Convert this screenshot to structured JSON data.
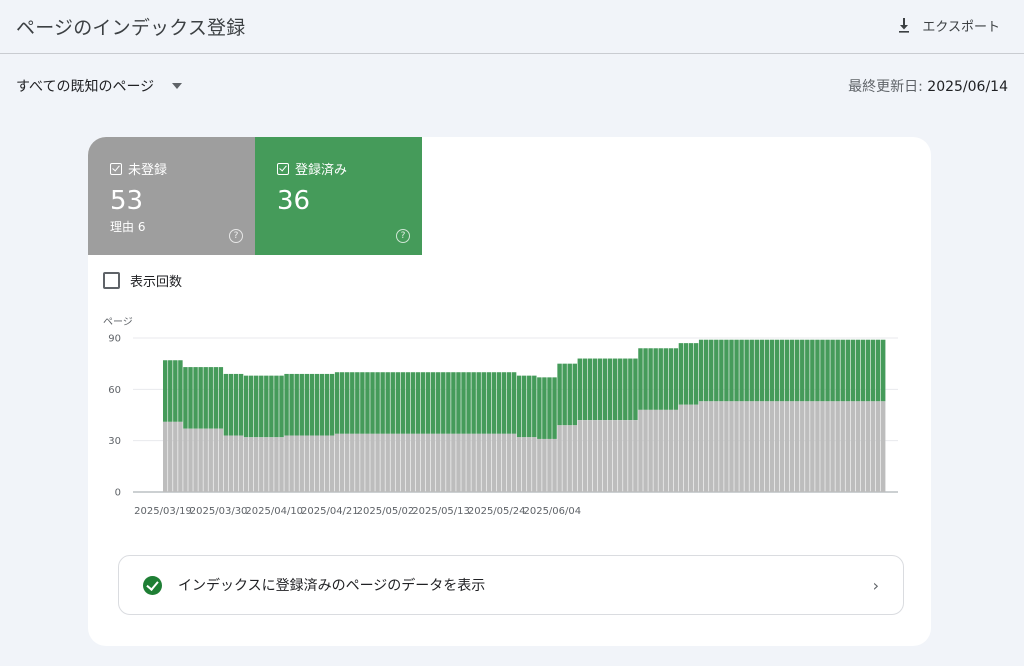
{
  "header": {
    "title": "ページのインデックス登録",
    "export_label": "エクスポート"
  },
  "filter": {
    "selected": "すべての既知のページ"
  },
  "last_updated": {
    "label": "最終更新日:",
    "value": "2025/06/14"
  },
  "tiles": {
    "not_indexed": {
      "label": "未登録",
      "value": "53",
      "reason": "理由 6"
    },
    "indexed": {
      "label": "登録済み",
      "value": "36"
    }
  },
  "impressions_label": "表示回数",
  "link_row": {
    "text": "インデックスに登録済みのページのデータを表示"
  },
  "colors": {
    "indexed": "#459b5a",
    "not_indexed": "#bdbdbd",
    "not_indexed_tile": "#9e9e9e"
  },
  "chart_data": {
    "type": "bar",
    "stacked": true,
    "ylabel": "ページ",
    "ylim": [
      0,
      90
    ],
    "yticks": [
      0,
      30,
      60,
      90
    ],
    "xtick_labels": [
      "2025/03/19",
      "2025/03/30",
      "2025/04/10",
      "2025/04/21",
      "2025/05/02",
      "2025/05/13",
      "2025/05/24",
      "2025/06/04"
    ],
    "xtick_index": [
      0,
      11,
      22,
      33,
      44,
      55,
      66,
      77
    ],
    "series": [
      {
        "name": "未登録",
        "values": [
          41,
          41,
          41,
          41,
          37,
          37,
          37,
          37,
          37,
          37,
          37,
          37,
          33,
          33,
          33,
          33,
          32,
          32,
          32,
          32,
          32,
          32,
          32,
          32,
          33,
          33,
          33,
          33,
          33,
          33,
          33,
          33,
          33,
          33,
          34,
          34,
          34,
          34,
          34,
          34,
          34,
          34,
          34,
          34,
          34,
          34,
          34,
          34,
          34,
          34,
          34,
          34,
          34,
          34,
          34,
          34,
          34,
          34,
          34,
          34,
          34,
          34,
          34,
          34,
          34,
          34,
          34,
          34,
          34,
          34,
          32,
          32,
          32,
          32,
          31,
          31,
          31,
          31,
          39,
          39,
          39,
          39,
          42,
          42,
          42,
          42,
          42,
          42,
          42,
          42,
          42,
          42,
          42,
          42,
          48,
          48,
          48,
          48,
          48,
          48,
          48,
          48,
          51,
          51,
          51,
          51,
          53,
          53,
          53,
          53,
          53,
          53,
          53,
          53,
          53,
          53,
          53,
          53,
          53,
          53,
          53,
          53,
          53,
          53,
          53,
          53,
          53,
          53,
          53,
          53,
          53,
          53,
          53,
          53,
          53,
          53,
          53,
          53,
          53,
          53,
          53,
          53,
          53
        ]
      }
    ]
  }
}
